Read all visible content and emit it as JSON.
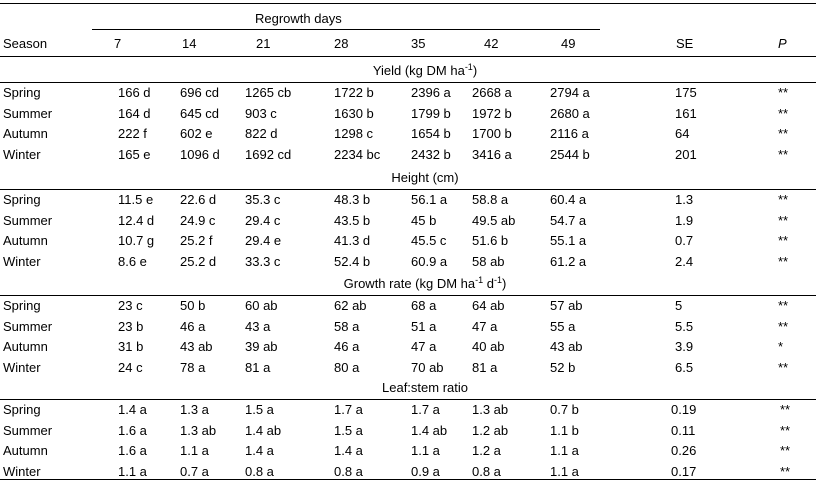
{
  "header": {
    "spanner": "Regrowth days",
    "season": "Season",
    "days": [
      "7",
      "14",
      "21",
      "28",
      "35",
      "42",
      "49"
    ],
    "se": "SE",
    "p": "P"
  },
  "sections": [
    {
      "title_main": "Yield (kg DM ha",
      "title_sup": "-1",
      "title_end": ")",
      "rows": [
        {
          "season": "Spring",
          "values": [
            "166 d",
            "696 cd",
            "1265 cb",
            "1722 b",
            "2396 a",
            "2668 a",
            "2794 a"
          ],
          "se": "175",
          "p": "**"
        },
        {
          "season": "Summer",
          "values": [
            "164 d",
            "645 cd",
            "903 c",
            "1630 b",
            "1799 b",
            "1972 b",
            "2680 a"
          ],
          "se": "161",
          "p": "**"
        },
        {
          "season": "Autumn",
          "values": [
            "222 f",
            "602 e",
            "822 d",
            "1298 c",
            "1654 b",
            "1700 b",
            "2116 a"
          ],
          "se": "64",
          "p": "**"
        },
        {
          "season": "Winter",
          "values": [
            "165 e",
            "1096 d",
            "1692 cd",
            "2234 bc",
            "2432 b",
            "3416 a",
            "2544 b"
          ],
          "se": "201",
          "p": "**"
        }
      ]
    },
    {
      "title_main": "Height (cm)",
      "title_sup": "",
      "title_end": "",
      "rows": [
        {
          "season": "Spring",
          "values": [
            "11.5 e",
            "22.6 d",
            "35.3 c",
            "48.3 b",
            "56.1 a",
            "58.8 a",
            "60.4 a"
          ],
          "se": "1.3",
          "p": "**"
        },
        {
          "season": "Summer",
          "values": [
            "12.4 d",
            "24.9 c",
            "29.4 c",
            "43.5 b",
            "45 b",
            "49.5 ab",
            "54.7 a"
          ],
          "se": "1.9",
          "p": "**"
        },
        {
          "season": "Autumn",
          "values": [
            "10.7 g",
            "25.2 f",
            "29.4 e",
            "41.3 d",
            "45.5 c",
            "51.6 b",
            "55.1 a"
          ],
          "se": "0.7",
          "p": "**"
        },
        {
          "season": "Winter",
          "values": [
            "8.6 e",
            "25.2 d",
            "33.3 c",
            "52.4 b",
            "60.9 a",
            "58 ab",
            "61.2 a"
          ],
          "se": "2.4",
          "p": "**"
        }
      ]
    },
    {
      "title_main": "Growth rate (kg DM ha",
      "title_sup": "-1",
      "title_end": " d",
      "title_sup2": "-1",
      "title_end2": ")",
      "rows": [
        {
          "season": "Spring",
          "values": [
            "23 c",
            "50 b",
            "60 ab",
            "62 ab",
            "68 a",
            "64 ab",
            "57 ab"
          ],
          "se": "5",
          "p": "**"
        },
        {
          "season": "Summer",
          "values": [
            "23 b",
            "46 a",
            "43 a",
            "58 a",
            "51 a",
            "47 a",
            "55 a"
          ],
          "se": "5.5",
          "p": "**"
        },
        {
          "season": "Autumn",
          "values": [
            "31 b",
            "43 ab",
            "39 ab",
            "46 a",
            "47 a",
            "40 ab",
            "43 ab"
          ],
          "se": "3.9",
          "p": "*"
        },
        {
          "season": "Winter",
          "values": [
            "24 c",
            "78 a",
            "81 a",
            "80 a",
            "70 ab",
            "81 a",
            "52 b"
          ],
          "se": "6.5",
          "p": "**"
        }
      ]
    },
    {
      "title_main": "Leaf:stem ratio",
      "title_sup": "",
      "title_end": "",
      "rows": [
        {
          "season": "Spring",
          "values": [
            "1.4 a",
            "1.3 a",
            "1.5 a",
            "1.7 a",
            "1.7 a",
            "1.3 ab",
            "0.7 b"
          ],
          "se": "0.19",
          "p": "**"
        },
        {
          "season": "Summer",
          "values": [
            "1.6 a",
            "1.3 ab",
            "1.4 ab",
            "1.5 a",
            "1.4 ab",
            "1.2 ab",
            "1.1 b"
          ],
          "se": "0.11",
          "p": "**"
        },
        {
          "season": "Autumn",
          "values": [
            "1.6 a",
            "1.1 a",
            "1.4 a",
            "1.4 a",
            "1.1 a",
            "1.2 a",
            "1.1 a"
          ],
          "se": "0.26",
          "p": "**"
        },
        {
          "season": "Winter",
          "values": [
            "1.1 a",
            "0.7 a",
            "0.8 a",
            "0.8 a",
            "0.9 a",
            "0.8 a",
            "1.1 a"
          ],
          "se": "0.17",
          "p": "**"
        }
      ]
    }
  ]
}
